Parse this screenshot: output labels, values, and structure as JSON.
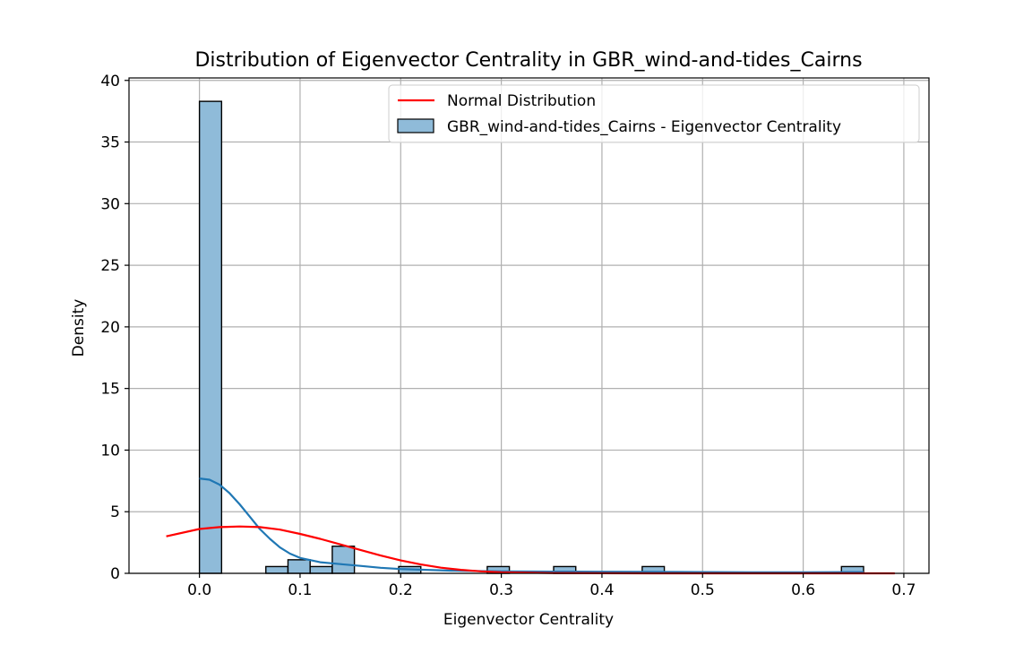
{
  "chart_data": {
    "type": "histogram",
    "title": "Distribution of Eigenvector Centrality in GBR_wind-and-tides_Cairns",
    "xlabel": "Eigenvector Centrality",
    "ylabel": "Density",
    "xlim": [
      -0.07,
      0.725
    ],
    "ylim": [
      0,
      40.2
    ],
    "xticks": [
      0.0,
      0.1,
      0.2,
      0.3,
      0.4,
      0.5,
      0.6,
      0.7
    ],
    "xtick_labels": [
      "0.0",
      "0.1",
      "0.2",
      "0.3",
      "0.4",
      "0.5",
      "0.6",
      "0.7"
    ],
    "yticks": [
      0,
      5,
      10,
      15,
      20,
      25,
      30,
      35,
      40
    ],
    "ytick_labels": [
      "0",
      "5",
      "10",
      "15",
      "20",
      "25",
      "30",
      "35",
      "40"
    ],
    "grid": true,
    "legend_position": "top-right",
    "legend": [
      {
        "label": "Normal Distribution",
        "kind": "line",
        "color": "#ff0000"
      },
      {
        "label": "GBR_wind-and-tides_Cairns - Eigenvector Centrality",
        "kind": "patch",
        "color": "#8fbbd9"
      }
    ],
    "bins": [
      {
        "x0": 0.0,
        "x1": 0.022,
        "density": 38.3
      },
      {
        "x0": 0.066,
        "x1": 0.088,
        "density": 0.55
      },
      {
        "x0": 0.088,
        "x1": 0.11,
        "density": 1.1
      },
      {
        "x0": 0.11,
        "x1": 0.132,
        "density": 0.55
      },
      {
        "x0": 0.132,
        "x1": 0.154,
        "density": 2.2
      },
      {
        "x0": 0.198,
        "x1": 0.22,
        "density": 0.55
      },
      {
        "x0": 0.286,
        "x1": 0.308,
        "density": 0.55
      },
      {
        "x0": 0.352,
        "x1": 0.374,
        "density": 0.55
      },
      {
        "x0": 0.44,
        "x1": 0.462,
        "density": 0.55
      },
      {
        "x0": 0.638,
        "x1": 0.66,
        "density": 0.55
      }
    ],
    "kde_curve": {
      "color": "#1f77b4",
      "x": [
        0.0,
        0.01,
        0.02,
        0.03,
        0.04,
        0.05,
        0.06,
        0.07,
        0.08,
        0.09,
        0.1,
        0.12,
        0.14,
        0.16,
        0.18,
        0.2,
        0.25,
        0.3,
        0.35,
        0.4,
        0.45,
        0.5,
        0.55,
        0.6,
        0.65,
        0.66
      ],
      "y": [
        7.7,
        7.6,
        7.2,
        6.5,
        5.6,
        4.6,
        3.6,
        2.8,
        2.1,
        1.6,
        1.25,
        0.9,
        0.75,
        0.6,
        0.45,
        0.35,
        0.22,
        0.16,
        0.14,
        0.13,
        0.12,
        0.1,
        0.08,
        0.08,
        0.1,
        0.1
      ]
    },
    "normal_curve": {
      "color": "#ff0000",
      "x": [
        -0.033,
        0.0,
        0.02,
        0.04,
        0.06,
        0.08,
        0.1,
        0.12,
        0.14,
        0.16,
        0.18,
        0.2,
        0.22,
        0.24,
        0.26,
        0.28,
        0.3,
        0.35,
        0.4,
        0.45,
        0.5,
        0.55,
        0.6,
        0.65,
        0.691
      ],
      "y": [
        3.0,
        3.6,
        3.75,
        3.8,
        3.75,
        3.55,
        3.2,
        2.8,
        2.35,
        1.9,
        1.45,
        1.05,
        0.72,
        0.46,
        0.28,
        0.16,
        0.09,
        0.02,
        0.01,
        0.0,
        0.0,
        0.0,
        0.0,
        0.0,
        0.0
      ]
    }
  }
}
